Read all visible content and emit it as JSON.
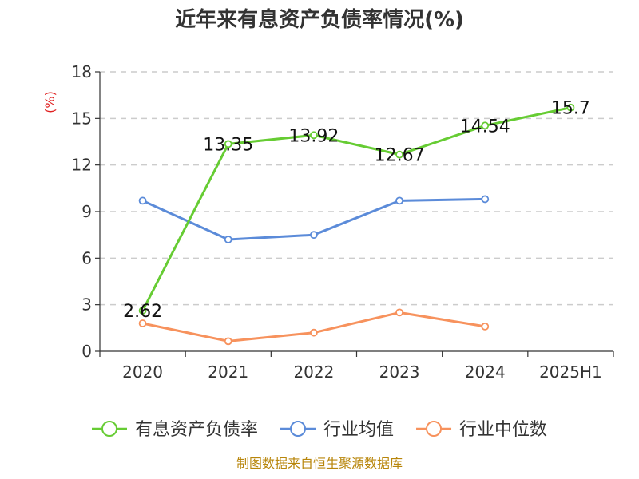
{
  "chart_data": {
    "type": "line",
    "title": "近年来有息资产负债率情况(%)",
    "ylabel": "(%)",
    "xlabel": "",
    "categories": [
      "2020",
      "2021",
      "2022",
      "2023",
      "2024",
      "2025H1"
    ],
    "ylim": [
      0,
      18
    ],
    "yticks": [
      0,
      3,
      6,
      9,
      12,
      15,
      18
    ],
    "grid": true,
    "legend_position": "bottom",
    "series": [
      {
        "name": "有息资产负债率",
        "color": "#66cc33",
        "values": [
          2.62,
          13.35,
          13.92,
          12.67,
          14.54,
          15.7
        ],
        "labels": [
          "2.62",
          "13.35",
          "13.92",
          "12.67",
          "14.54",
          "15.7"
        ],
        "show_labels": true
      },
      {
        "name": "行业均值",
        "color": "#5b8bd9",
        "values": [
          9.7,
          7.2,
          7.5,
          9.7,
          9.8,
          null
        ],
        "show_labels": false
      },
      {
        "name": "行业中位数",
        "color": "#f7925d",
        "values": [
          1.8,
          0.65,
          1.2,
          2.5,
          1.6,
          null
        ],
        "show_labels": false
      }
    ],
    "footer": "制图数据来自恒生聚源数据库"
  }
}
